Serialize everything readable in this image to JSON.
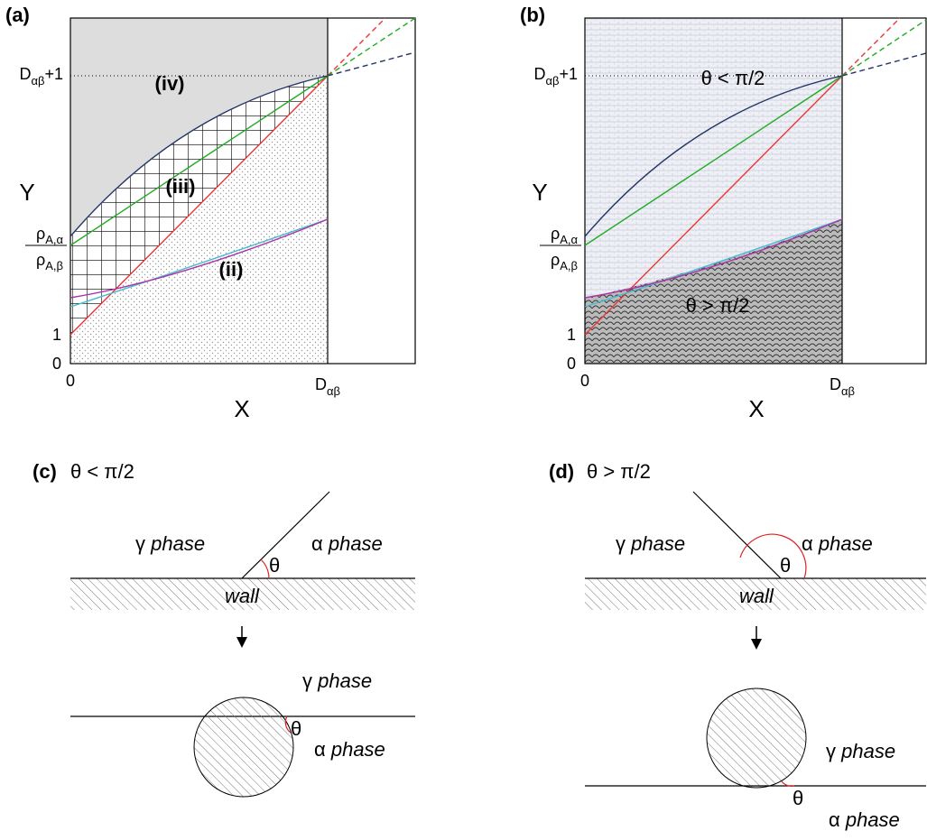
{
  "panels": [
    {
      "label": "(a)",
      "x_axis_label": "X",
      "y_axis_label": "Y",
      "xtick_labels": {
        "zero": "0",
        "end": {
          "base": "D",
          "sub": "αβ"
        }
      },
      "ytick_labels": {
        "zero": "0",
        "one": "1",
        "top": {
          "base": "D",
          "sub": "αβ",
          "tail": "+1"
        },
        "ratio": {
          "num": {
            "base": "ρ",
            "sub": "A,α"
          },
          "den": {
            "base": "ρ",
            "sub": "A,β"
          }
        }
      },
      "region_labels": [
        "(iv)",
        "(iii)",
        "(ii)"
      ]
    },
    {
      "label": "(b)",
      "x_axis_label": "X",
      "y_axis_label": "Y",
      "xtick_labels": {
        "zero": "0",
        "end": {
          "base": "D",
          "sub": "αβ"
        }
      },
      "ytick_labels": {
        "zero": "0",
        "one": "1",
        "top": {
          "base": "D",
          "sub": "αβ",
          "tail": "+1"
        },
        "ratio": {
          "num": {
            "base": "ρ",
            "sub": "A,α"
          },
          "den": {
            "base": "ρ",
            "sub": "A,β"
          }
        }
      },
      "region_labels": [
        "θ < π/2",
        "θ > π/2"
      ]
    },
    {
      "label": "(c)",
      "condition": "θ < π/2",
      "gamma": "γ",
      "alpha": "α",
      "phase": "phase",
      "wall": "wall",
      "theta": "θ"
    },
    {
      "label": "(d)",
      "condition": "θ > π/2",
      "gamma": "γ",
      "alpha": "α",
      "phase": "phase",
      "wall": "wall",
      "theta": "θ"
    }
  ]
}
